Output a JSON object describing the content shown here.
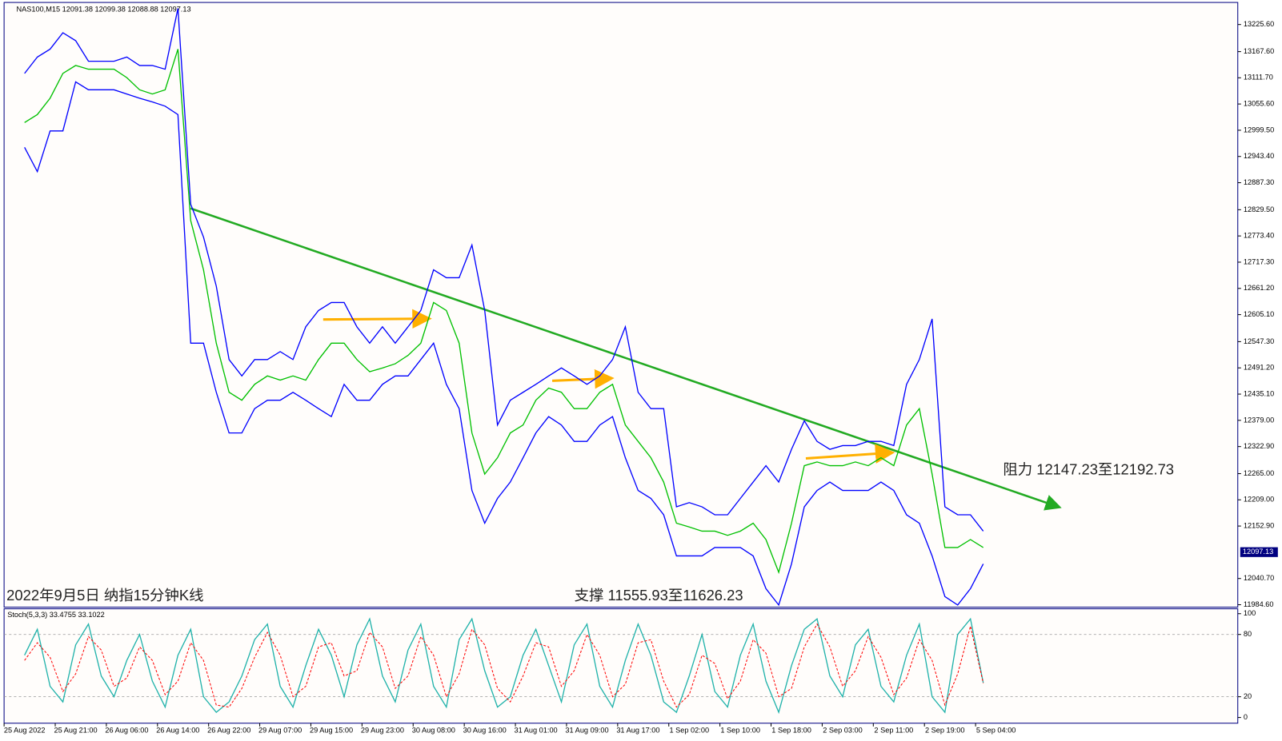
{
  "chart_data": [
    {
      "type": "line",
      "title": "NAS100,M15  12091.38 12099.38 12088.88 12097.13",
      "annotations": [
        "2022年9月5日 纳指15分钟K线",
        "阻力 12147.23至12192.73",
        "支撑 11555.93至11626.23"
      ],
      "price_tag": 12097.13,
      "categories": [
        "25 Aug 2022",
        null,
        null,
        null,
        "25 Aug 21:00",
        null,
        null,
        null,
        "26 Aug 06:00",
        null,
        null,
        null,
        "26 Aug 14:00",
        null,
        null,
        null,
        "26 Aug 22:00",
        null,
        null,
        null,
        "29 Aug 07:00",
        null,
        null,
        null,
        "29 Aug 15:00",
        null,
        null,
        null,
        "29 Aug 23:00",
        null,
        null,
        null,
        "30 Aug 08:00",
        null,
        null,
        null,
        "30 Aug 16:00",
        null,
        null,
        null,
        "31 Aug 01:00",
        null,
        null,
        null,
        "31 Aug 09:00",
        null,
        null,
        null,
        "31 Aug 17:00",
        null,
        null,
        null,
        "1 Sep 02:00",
        null,
        null,
        null,
        "1 Sep 10:00",
        null,
        null,
        null,
        "1 Sep 18:00",
        null,
        null,
        null,
        "2 Sep 03:00",
        null,
        null,
        null,
        "2 Sep 11:00",
        null,
        null,
        null,
        "2 Sep 19:00",
        null,
        null,
        null,
        "5 Sep 04:00",
        null,
        null,
        null
      ],
      "series": [
        {
          "color": "#0000ff",
          "values": [
            13121,
            13156,
            13173,
            13208,
            13191,
            13147,
            13147,
            13147,
            13156,
            13138,
            13138,
            13130,
            13260,
            12841,
            12771,
            12666,
            12509,
            12474,
            12509,
            12509,
            12526,
            12509,
            12579,
            12614,
            12631,
            12631,
            12579,
            12544,
            12579,
            12544,
            12579,
            12614,
            12701,
            12684,
            12684,
            12754,
            12614,
            12369,
            12422,
            12439,
            12456,
            12474,
            12491,
            12474,
            12456,
            12474,
            12509,
            12579,
            12439,
            12404,
            12404,
            12194,
            12203,
            12194,
            12177,
            12177,
            12212,
            12247,
            12282,
            12247,
            12317,
            12378,
            12334,
            12317,
            12325,
            12325,
            12334,
            12334,
            12325,
            12456,
            12509,
            12596,
            12194,
            12177,
            12177,
            12142,
            null,
            null,
            null,
            null
          ]
        },
        {
          "color": "#0000ff",
          "values": [
            12963,
            12911,
            12998,
            12998,
            13103,
            13086,
            13086,
            13086,
            13077,
            13068,
            13060,
            13051,
            13033,
            12544,
            12544,
            12439,
            12352,
            12352,
            12404,
            12422,
            12422,
            12439,
            12422,
            12404,
            12387,
            12456,
            12422,
            12422,
            12456,
            12474,
            12474,
            12509,
            12544,
            12456,
            12404,
            12229,
            12159,
            12212,
            12247,
            12299,
            12352,
            12387,
            12369,
            12334,
            12334,
            12369,
            12387,
            12299,
            12229,
            12212,
            12177,
            12089,
            12089,
            12089,
            12107,
            12107,
            12107,
            12089,
            12019,
            11984,
            12072,
            12194,
            12229,
            12247,
            12229,
            12229,
            12229,
            12247,
            12229,
            12177,
            12159,
            12089,
            12002,
            11984,
            12019,
            12072,
            null,
            null,
            null,
            null
          ]
        },
        {
          "color": "#00c000",
          "values": [
            13016,
            13033,
            13068,
            13121,
            13138,
            13130,
            13130,
            13130,
            13112,
            13086,
            13077,
            13086,
            13173,
            12806,
            12701,
            12544,
            12439,
            12422,
            12456,
            12474,
            12465,
            12474,
            12465,
            12509,
            12544,
            12544,
            12509,
            12483,
            12491,
            12500,
            12518,
            12544,
            12631,
            12614,
            12544,
            12352,
            12264,
            12299,
            12352,
            12369,
            12422,
            12448,
            12439,
            12404,
            12404,
            12439,
            12456,
            12369,
            12334,
            12299,
            12247,
            12159,
            12151,
            12142,
            12142,
            12133,
            12142,
            12159,
            12124,
            12054,
            12159,
            12282,
            12290,
            12282,
            12282,
            12290,
            12282,
            12299,
            12282,
            12369,
            12404,
            12264,
            12107,
            12107,
            12124,
            12107,
            null,
            null,
            null,
            null
          ]
        }
      ],
      "ylim": [
        11979.4,
        13269.3
      ],
      "yticks": [
        {
          "value": 13225.6,
          "label": "13225.60"
        },
        {
          "value": 13167.6,
          "label": "13167.60"
        },
        {
          "value": 13111.7,
          "label": "13111.70"
        },
        {
          "value": 13055.6,
          "label": "13055.60"
        },
        {
          "value": 12999.5,
          "label": "12999.50"
        },
        {
          "value": 12943.4,
          "label": "12943.40"
        },
        {
          "value": 12887.3,
          "label": "12887.30"
        },
        {
          "value": 12829.5,
          "label": "12829.50"
        },
        {
          "value": 12773.4,
          "label": "12773.40"
        },
        {
          "value": 12717.3,
          "label": "12717.30"
        },
        {
          "value": 12661.2,
          "label": "12661.20"
        },
        {
          "value": 12605.1,
          "label": "12605.10"
        },
        {
          "value": 12547.3,
          "label": "12547.30"
        },
        {
          "value": 12491.2,
          "label": "12491.20"
        },
        {
          "value": 12435.1,
          "label": "12435.10"
        },
        {
          "value": 12379,
          "label": "12379.00"
        },
        {
          "value": 12322.9,
          "label": "12322.90"
        },
        {
          "value": 12265,
          "label": "12265.00"
        },
        {
          "value": 12209,
          "label": "12209.00"
        },
        {
          "value": 12152.9,
          "label": "12152.90"
        },
        {
          "value": 12040.7,
          "label": "12040.70"
        },
        {
          "value": 11984.6,
          "label": "11984.60"
        }
      ]
    },
    {
      "type": "line",
      "title": "Stoch(5,3,3) 33.4755 33.1022",
      "series": [
        {
          "color": "#20b2aa",
          "values": [
            60,
            85,
            30,
            15,
            70,
            90,
            40,
            20,
            55,
            80,
            35,
            10,
            60,
            85,
            20,
            5,
            15,
            40,
            75,
            90,
            30,
            10,
            50,
            85,
            60,
            20,
            70,
            95,
            40,
            15,
            65,
            90,
            30,
            10,
            75,
            95,
            45,
            10,
            20,
            60,
            85,
            50,
            15,
            70,
            90,
            30,
            10,
            55,
            90,
            60,
            15,
            5,
            40,
            80,
            25,
            10,
            60,
            90,
            35,
            5,
            50,
            85,
            95,
            40,
            20,
            70,
            85,
            30,
            15,
            60,
            90,
            20,
            5,
            80,
            95,
            33.5,
            null,
            null,
            null,
            null
          ]
        },
        {
          "color": "#ff0000",
          "dashed": true,
          "values": [
            55,
            72,
            58,
            25,
            42,
            78,
            65,
            30,
            38,
            68,
            55,
            22,
            35,
            72,
            55,
            12,
            10,
            28,
            58,
            82,
            60,
            20,
            30,
            68,
            72,
            40,
            45,
            82,
            68,
            28,
            40,
            78,
            60,
            20,
            42,
            85,
            70,
            28,
            15,
            40,
            72,
            68,
            30,
            45,
            80,
            60,
            20,
            32,
            72,
            75,
            35,
            10,
            22,
            60,
            52,
            18,
            35,
            75,
            62,
            20,
            28,
            68,
            90,
            68,
            30,
            45,
            78,
            58,
            22,
            38,
            75,
            55,
            12,
            42,
            88,
            33.1,
            null,
            null,
            null,
            null
          ]
        }
      ],
      "ylim": [
        0,
        100
      ],
      "yticks": [
        100,
        80,
        20,
        0
      ],
      "grid": true
    }
  ]
}
